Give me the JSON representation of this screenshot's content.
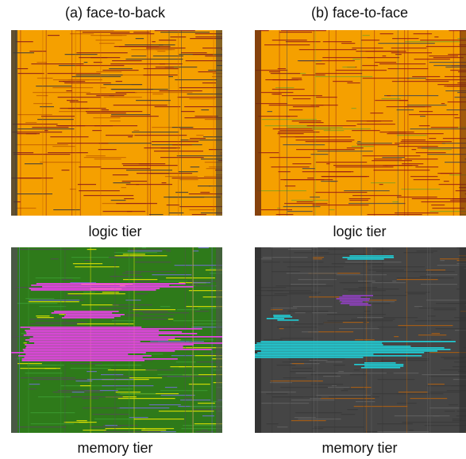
{
  "columns": [
    {
      "title": "(a) face-to-back",
      "panels": [
        {
          "label": "logic tier"
        },
        {
          "label": "memory tier"
        }
      ]
    },
    {
      "title": "(b) face-to-face",
      "panels": [
        {
          "label": "logic tier"
        },
        {
          "label": "memory tier"
        }
      ]
    }
  ]
}
